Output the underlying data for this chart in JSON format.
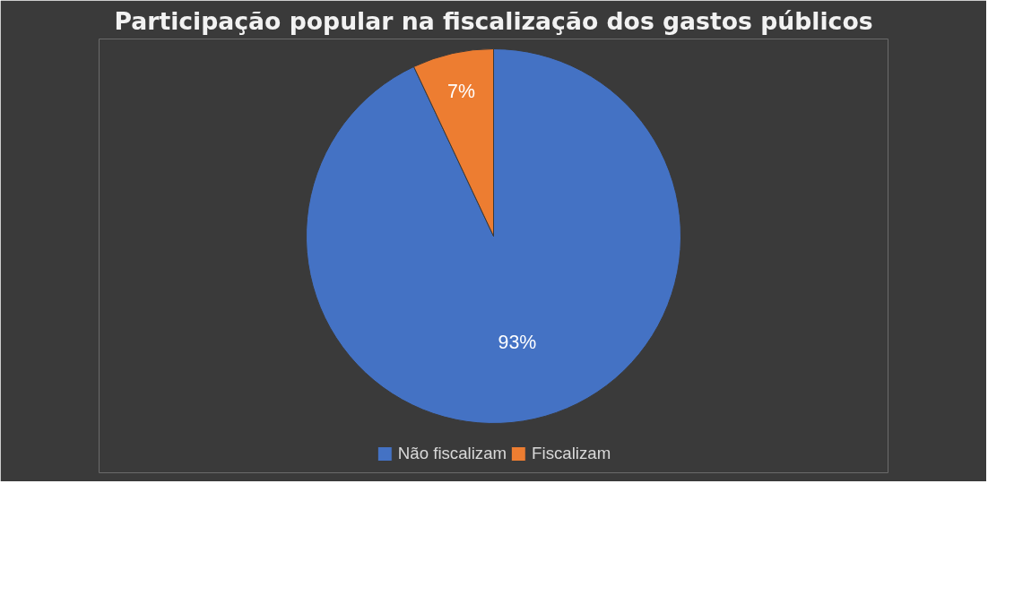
{
  "chart_data": {
    "type": "pie",
    "title": "Participação popular na fiscalização dos gastos públicos",
    "categories": [
      "Não fiscalizam",
      "Fiscalizam"
    ],
    "values": [
      93,
      7
    ],
    "colors": [
      "#4472c4",
      "#ed7d31"
    ],
    "value_labels": [
      "93%",
      "7%"
    ],
    "legend": "bottom"
  }
}
